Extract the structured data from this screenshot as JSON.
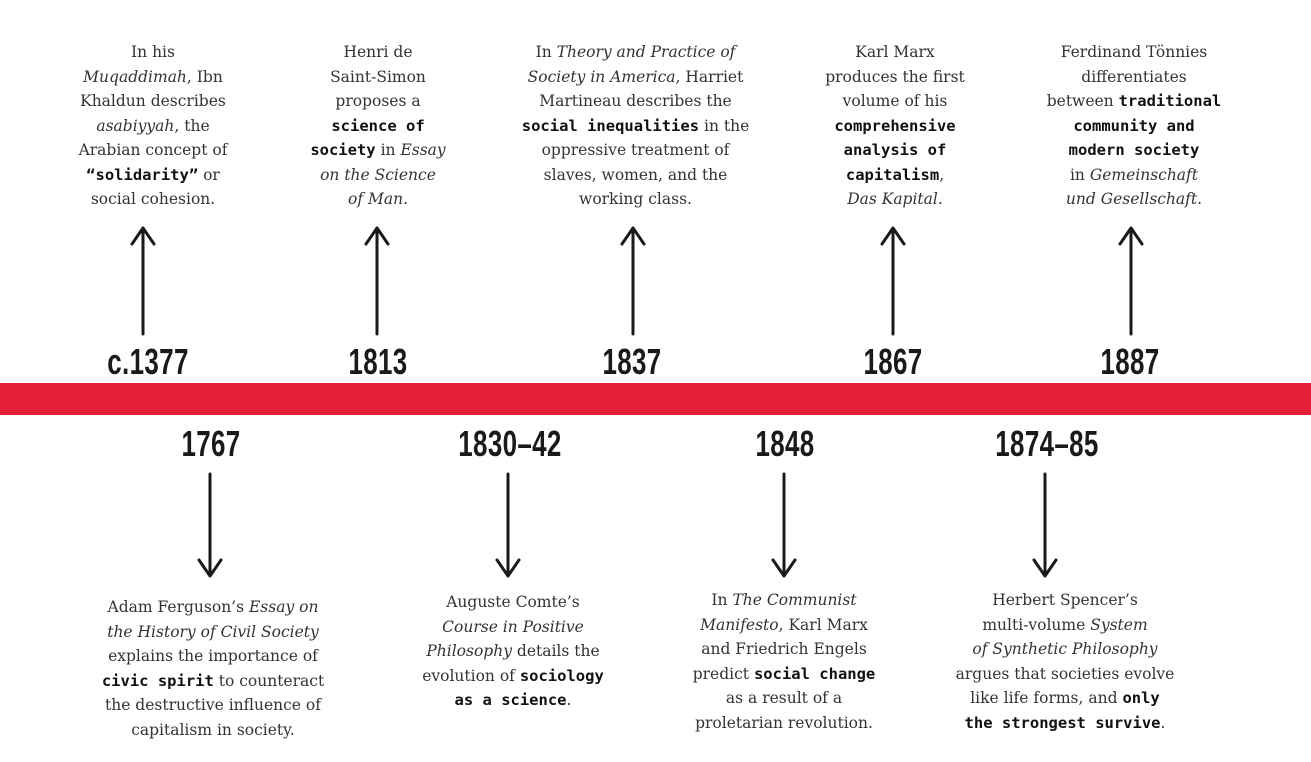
{
  "colors": {
    "band": "#e31e35",
    "text": "#333333",
    "year": "#1a1a1a"
  },
  "above": [
    {
      "year": "c.1377",
      "lines": [
        [
          [
            "In his"
          ]
        ],
        [
          [
            "Muqaddimah",
            "i"
          ],
          [
            ", Ibn"
          ]
        ],
        [
          [
            "Khaldun describes"
          ]
        ],
        [
          [
            "asabiyyah",
            "i"
          ],
          [
            ", the"
          ]
        ],
        [
          [
            "Arabian concept of"
          ]
        ],
        [
          [
            "“solidarity”",
            "b"
          ],
          [
            " or"
          ]
        ],
        [
          [
            "social cohesion."
          ]
        ]
      ]
    },
    {
      "year": "1813",
      "lines": [
        [
          [
            "Henri de"
          ]
        ],
        [
          [
            "Saint-Simon"
          ]
        ],
        [
          [
            "proposes a"
          ]
        ],
        [
          [
            "science of",
            "b"
          ]
        ],
        [
          [
            "society",
            "b"
          ],
          [
            " in "
          ],
          [
            "Essay",
            "i"
          ]
        ],
        [
          [
            "on the Science",
            "i"
          ]
        ],
        [
          [
            "of Man",
            "i"
          ],
          [
            "."
          ]
        ]
      ]
    },
    {
      "year": "1837",
      "lines": [
        [
          [
            "In "
          ],
          [
            "Theory and Practice of",
            "i"
          ]
        ],
        [
          [
            "Society in America",
            "i"
          ],
          [
            ", Harriet"
          ]
        ],
        [
          [
            "Martineau describes the"
          ]
        ],
        [
          [
            "social inequalities",
            "b"
          ],
          [
            " in the"
          ]
        ],
        [
          [
            "oppressive treatment of"
          ]
        ],
        [
          [
            "slaves, women, and the"
          ]
        ],
        [
          [
            "working class."
          ]
        ]
      ]
    },
    {
      "year": "1867",
      "lines": [
        [
          [
            "Karl Marx"
          ]
        ],
        [
          [
            "produces the first"
          ]
        ],
        [
          [
            "volume of his"
          ]
        ],
        [
          [
            "comprehensive",
            "b"
          ]
        ],
        [
          [
            "analysis of",
            "b"
          ]
        ],
        [
          [
            "capitalism",
            "b"
          ],
          [
            ","
          ]
        ],
        [
          [
            "Das Kapital",
            "i"
          ],
          [
            "."
          ]
        ]
      ]
    },
    {
      "year": "1887",
      "lines": [
        [
          [
            "Ferdinand Tönnies"
          ]
        ],
        [
          [
            "differentiates"
          ]
        ],
        [
          [
            "between "
          ],
          [
            "traditional",
            "b"
          ]
        ],
        [
          [
            "community and",
            "b"
          ]
        ],
        [
          [
            "modern society",
            "b"
          ]
        ],
        [
          [
            "in "
          ],
          [
            "Gemeinschaft",
            "i"
          ]
        ],
        [
          [
            "und Gesellschaft",
            "i"
          ],
          [
            "."
          ]
        ]
      ]
    }
  ],
  "below": [
    {
      "year": "1767",
      "lines": [
        [
          [
            "Adam Ferguson’s "
          ],
          [
            "Essay on",
            "i"
          ]
        ],
        [
          [
            "the History of Civil Society",
            "i"
          ]
        ],
        [
          [
            "explains the importance of"
          ]
        ],
        [
          [
            "civic spirit",
            "b"
          ],
          [
            " to counteract"
          ]
        ],
        [
          [
            "the destructive influence of"
          ]
        ],
        [
          [
            "capitalism in society."
          ]
        ]
      ]
    },
    {
      "year": "1830–42",
      "lines": [
        [
          [
            "Auguste Comte’s"
          ]
        ],
        [
          [
            "Course in Positive",
            "i"
          ]
        ],
        [
          [
            "Philosophy",
            "i"
          ],
          [
            " details the"
          ]
        ],
        [
          [
            "evolution of "
          ],
          [
            "sociology",
            "b"
          ]
        ],
        [
          [
            "as a science",
            "b"
          ],
          [
            "."
          ]
        ]
      ]
    },
    {
      "year": "1848",
      "lines": [
        [
          [
            "In "
          ],
          [
            "The Communist",
            "i"
          ]
        ],
        [
          [
            "Manifesto",
            "i"
          ],
          [
            ", Karl Marx"
          ]
        ],
        [
          [
            "and Friedrich Engels"
          ]
        ],
        [
          [
            "predict "
          ],
          [
            "social change",
            "b"
          ]
        ],
        [
          [
            "as a result of a"
          ]
        ],
        [
          [
            "proletarian revolution."
          ]
        ]
      ]
    },
    {
      "year": "1874–85",
      "lines": [
        [
          [
            "Herbert Spencer’s"
          ]
        ],
        [
          [
            "multi-volume "
          ],
          [
            "System",
            "i"
          ]
        ],
        [
          [
            "of Synthetic Philosophy",
            "i"
          ]
        ],
        [
          [
            "argues that societies evolve"
          ]
        ],
        [
          [
            "like life forms, and "
          ],
          [
            "only",
            "b"
          ]
        ],
        [
          [
            "the strongest survive",
            "b"
          ],
          [
            "."
          ]
        ]
      ]
    }
  ]
}
